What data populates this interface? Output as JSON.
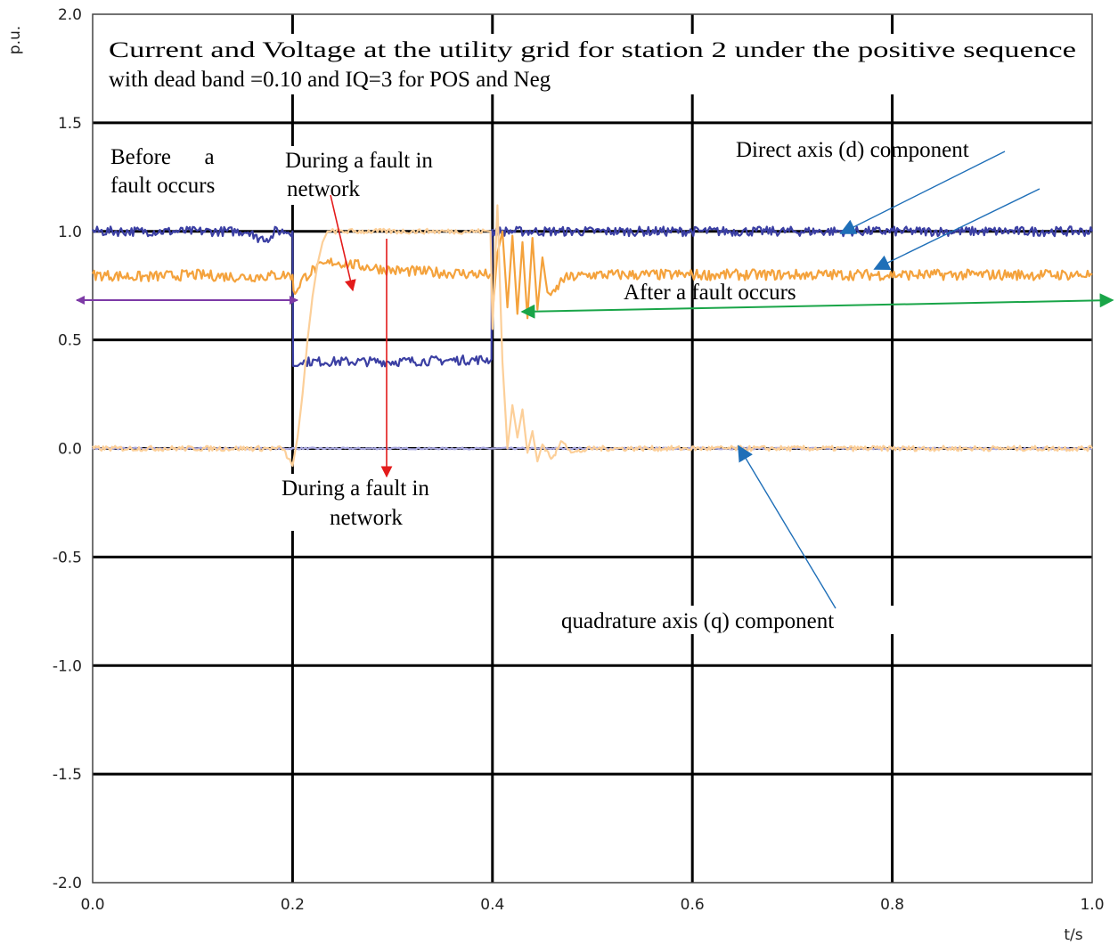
{
  "chart_data": {
    "type": "line",
    "title_lines": [
      "Current and Voltage  at the utility grid for station 2 under the positive sequence",
      "with dead band =0.10 and IQ=3 for POS and Neg"
    ],
    "xlabel": "t/s",
    "ylabel": "p.u.",
    "xlim": [
      0,
      1.0
    ],
    "ylim": [
      -2.0,
      2.0
    ],
    "x_ticks": [
      0.0,
      0.2,
      0.4,
      0.6,
      0.8,
      1.0
    ],
    "x_tick_labels": [
      "0.0",
      "0.2",
      "0.4",
      "0.6",
      "0.8",
      "1.0"
    ],
    "y_ticks": [
      2.0,
      1.5,
      1.0,
      0.5,
      0.0,
      -0.5,
      -1.0,
      -1.5,
      -2.0
    ],
    "y_tick_labels": [
      "2.0",
      "1.5",
      "1.0",
      "0.5",
      "0.0",
      "-0.5",
      "-1.0",
      "-1.5",
      "-2.0"
    ],
    "grid": true,
    "series": [
      {
        "color": "#3b3fa3",
        "x": [
          0,
          0.16,
          0.161,
          0.18,
          0.181,
          0.2,
          0.2005,
          0.205,
          0.21,
          0.3,
          0.399,
          0.3995,
          0.4,
          1.0
        ],
        "y": [
          1.0,
          1.0,
          0.97,
          0.97,
          1.0,
          1.0,
          0.38,
          0.38,
          0.4,
          0.4,
          0.41,
          1.0,
          1.0,
          1.0
        ]
      },
      {
        "color": "#f4a23c",
        "x": [
          0,
          0.05,
          0.1,
          0.15,
          0.2,
          0.201,
          0.21,
          0.22,
          0.24,
          0.3,
          0.35,
          0.399,
          0.4,
          0.405,
          0.41,
          0.415,
          0.42,
          0.425,
          0.43,
          0.435,
          0.44,
          0.445,
          0.45,
          0.455,
          0.46,
          0.47,
          0.48,
          0.5,
          0.6,
          0.8,
          1.0
        ],
        "y": [
          0.8,
          0.79,
          0.8,
          0.79,
          0.8,
          0.71,
          0.78,
          0.82,
          0.86,
          0.82,
          0.81,
          0.8,
          0.62,
          0.9,
          1.0,
          0.65,
          0.98,
          0.62,
          0.95,
          0.6,
          0.97,
          0.64,
          0.88,
          0.72,
          0.7,
          0.78,
          0.79,
          0.8,
          0.8,
          0.8,
          0.8
        ]
      },
      {
        "color": "#a9a8e0",
        "x": [
          0,
          0.2,
          0.4,
          1.0
        ],
        "y": [
          0.0,
          0.0,
          0.0,
          0.0
        ]
      },
      {
        "color": "#fccf99",
        "x": [
          0,
          0.19,
          0.2,
          0.205,
          0.21,
          0.215,
          0.22,
          0.225,
          0.23,
          0.235,
          0.24,
          0.3,
          0.398,
          0.4,
          0.405,
          0.41,
          0.415,
          0.42,
          0.425,
          0.43,
          0.435,
          0.44,
          0.445,
          0.45,
          0.46,
          0.47,
          0.48,
          0.5,
          0.6,
          0.8,
          1.0
        ],
        "y": [
          0.0,
          0.0,
          -0.08,
          0.05,
          0.25,
          0.5,
          0.7,
          0.85,
          0.95,
          1.0,
          1.0,
          1.0,
          1.0,
          0.55,
          1.12,
          0.4,
          0.0,
          0.2,
          0.05,
          0.18,
          -0.02,
          0.08,
          -0.06,
          0.02,
          -0.05,
          0.04,
          -0.02,
          0.0,
          0.0,
          0.0,
          0.0
        ]
      }
    ],
    "annotations": {
      "before_fault": [
        "Before      a",
        "fault occurs"
      ],
      "during_fault_top": [
        "During a fault in",
        "network"
      ],
      "during_fault_bottom": [
        "During a fault in",
        "network"
      ],
      "after_fault": "After a fault occurs",
      "direct_axis": "Direct axis (d) component",
      "quadrature_axis": "quadrature axis (q) component"
    },
    "arrow_colors": {
      "before": "#7d3aa6",
      "during": "#e31b1b",
      "after": "#19a548",
      "component": "#1f6fb8"
    }
  }
}
